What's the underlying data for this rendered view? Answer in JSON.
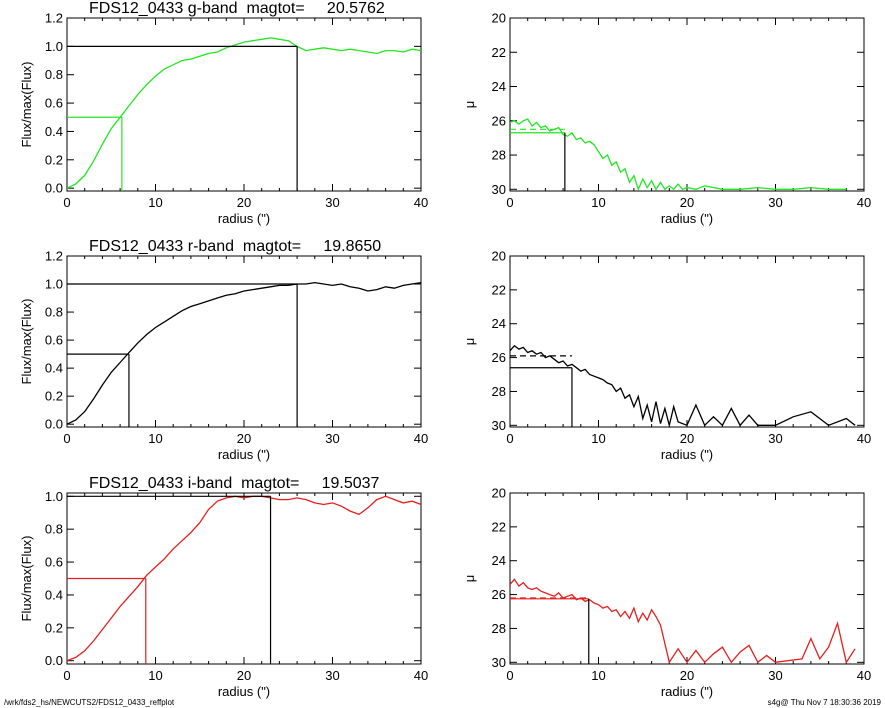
{
  "footer": {
    "path": "/wrk/fds2_hs/NEWCUTS2/FDS12_0433_reffplot",
    "stamp": "s4g@  Thu Nov  7 18:30:36 2019"
  },
  "chart_data": [
    {
      "id": "g-growth",
      "type": "line",
      "band": "g",
      "title": "FDS12_0433 g-band  magtot=     20.5762",
      "xlabel": "radius (\")",
      "ylabel": "Flux/max(Flux)",
      "xlim": [
        0,
        40
      ],
      "ylim": [
        -0.02,
        1.2
      ],
      "xticks": [
        0,
        10,
        20,
        30,
        40
      ],
      "xtick_labels": [
        "0",
        "10",
        "20",
        "30",
        "40"
      ],
      "yticks": [
        0.0,
        0.2,
        0.4,
        0.6,
        0.8,
        1.0,
        1.2
      ],
      "ytick_labels": [
        "0.0",
        "0.2",
        "0.4",
        "0.6",
        "0.8",
        "1.0",
        "1.2"
      ],
      "color": "#22e622",
      "x": [
        0,
        1,
        2,
        3,
        4,
        5,
        6,
        7,
        8,
        9,
        10,
        11,
        12,
        13,
        14,
        15,
        16,
        17,
        18,
        19,
        20,
        21,
        22,
        23,
        24,
        25,
        26,
        27,
        28,
        29,
        30,
        31,
        32,
        33,
        34,
        35,
        36,
        37,
        38,
        39,
        40
      ],
      "y": [
        0.0,
        0.03,
        0.09,
        0.19,
        0.31,
        0.42,
        0.5,
        0.58,
        0.66,
        0.73,
        0.79,
        0.84,
        0.87,
        0.9,
        0.91,
        0.93,
        0.95,
        0.96,
        0.99,
        1.01,
        1.03,
        1.04,
        1.05,
        1.06,
        1.05,
        1.04,
        1.0,
        0.97,
        0.98,
        0.99,
        0.98,
        0.97,
        0.98,
        0.97,
        0.96,
        0.95,
        0.97,
        0.97,
        0.96,
        0.98,
        0.97
      ],
      "markers": [
        {
          "x": 26,
          "y": 1.0,
          "color": "#000000"
        },
        {
          "x": 6.2,
          "y": 0.5,
          "color": "#22e622"
        }
      ]
    },
    {
      "id": "g-profile",
      "type": "line",
      "band": "g",
      "title": "",
      "xlabel": "radius (\")",
      "ylabel": "μ",
      "xlim": [
        0,
        40
      ],
      "ylim": [
        30.1,
        20
      ],
      "xticks": [
        0,
        10,
        20,
        30,
        40
      ],
      "xtick_labels": [
        "0",
        "10",
        "20",
        "30",
        "40"
      ],
      "yticks": [
        20,
        22,
        24,
        26,
        28,
        30
      ],
      "ytick_labels": [
        "20",
        "22",
        "24",
        "26",
        "28",
        "30"
      ],
      "color": "#22e622",
      "x": [
        0,
        0.5,
        1,
        1.5,
        2,
        2.5,
        3,
        3.5,
        4,
        4.5,
        5,
        5.5,
        6,
        6.5,
        7,
        7.5,
        8,
        8.5,
        9,
        9.5,
        10,
        10.5,
        11,
        11.5,
        12,
        12.5,
        13,
        13.5,
        14,
        14.5,
        15,
        15.5,
        16,
        16.5,
        17,
        17.5,
        18,
        18.5,
        19,
        19.5,
        20,
        21,
        22,
        24,
        26,
        28,
        30,
        32,
        34,
        36,
        38
      ],
      "y": [
        26.1,
        26.0,
        26.2,
        26.0,
        25.9,
        26.3,
        26.1,
        26.4,
        26.3,
        26.6,
        26.5,
        26.4,
        26.8,
        26.9,
        26.7,
        27.1,
        27.0,
        27.3,
        27.2,
        27.4,
        27.8,
        28.2,
        28.0,
        28.6,
        28.4,
        29.0,
        28.8,
        29.6,
        29.2,
        30.0,
        29.4,
        29.9,
        29.5,
        30.0,
        29.6,
        30.0,
        29.8,
        30.0,
        29.7,
        30.0,
        29.9,
        30.0,
        29.8,
        30.0,
        30.0,
        29.9,
        30.0,
        30.0,
        29.9,
        30.0,
        30.0
      ],
      "hlines": [
        {
          "y": 26.5,
          "x1": 0,
          "x2": 6.2,
          "color": "#22e622",
          "dash": true
        },
        {
          "y": 26.7,
          "x1": 0,
          "x2": 6.2,
          "color": "#22e622",
          "dash": false
        }
      ],
      "vlines": [
        {
          "x": 6.2,
          "color": "#000000"
        }
      ]
    },
    {
      "id": "r-growth",
      "type": "line",
      "band": "r",
      "title": "FDS12_0433 r-band  magtot=     19.8650",
      "xlabel": "radius (\")",
      "ylabel": "Flux/max(Flux)",
      "xlim": [
        0,
        40
      ],
      "ylim": [
        -0.02,
        1.2
      ],
      "xticks": [
        0,
        10,
        20,
        30,
        40
      ],
      "xtick_labels": [
        "0",
        "10",
        "20",
        "30",
        "40"
      ],
      "yticks": [
        0.0,
        0.2,
        0.4,
        0.6,
        0.8,
        1.0,
        1.2
      ],
      "ytick_labels": [
        "0.0",
        "0.2",
        "0.4",
        "0.6",
        "0.8",
        "1.0",
        "1.2"
      ],
      "color": "#000000",
      "x": [
        0,
        1,
        2,
        3,
        4,
        5,
        6,
        7,
        8,
        9,
        10,
        11,
        12,
        13,
        14,
        15,
        16,
        17,
        18,
        19,
        20,
        21,
        22,
        23,
        24,
        25,
        26,
        27,
        28,
        29,
        30,
        31,
        32,
        33,
        34,
        35,
        36,
        37,
        38,
        39,
        40
      ],
      "y": [
        0.0,
        0.03,
        0.09,
        0.18,
        0.28,
        0.37,
        0.44,
        0.51,
        0.58,
        0.64,
        0.69,
        0.73,
        0.77,
        0.81,
        0.84,
        0.86,
        0.88,
        0.9,
        0.92,
        0.93,
        0.95,
        0.96,
        0.97,
        0.98,
        0.99,
        0.99,
        1.0,
        1.0,
        1.01,
        1.0,
        0.99,
        1.0,
        0.98,
        0.97,
        0.95,
        0.96,
        0.98,
        0.97,
        0.99,
        1.0,
        1.01
      ],
      "markers": [
        {
          "x": 26,
          "y": 1.0,
          "color": "#000000"
        },
        {
          "x": 7,
          "y": 0.5,
          "color": "#000000"
        }
      ]
    },
    {
      "id": "r-profile",
      "type": "line",
      "band": "r",
      "title": "",
      "xlabel": "radius (\")",
      "ylabel": "μ",
      "xlim": [
        0,
        40
      ],
      "ylim": [
        30.1,
        20
      ],
      "xticks": [
        0,
        10,
        20,
        30,
        40
      ],
      "xtick_labels": [
        "0",
        "10",
        "20",
        "30",
        "40"
      ],
      "yticks": [
        20,
        22,
        24,
        26,
        28,
        30
      ],
      "ytick_labels": [
        "20",
        "22",
        "24",
        "26",
        "28",
        "30"
      ],
      "color": "#000000",
      "x": [
        0,
        0.5,
        1,
        1.5,
        2,
        2.5,
        3,
        3.5,
        4,
        4.5,
        5,
        5.5,
        6,
        6.5,
        7,
        7.5,
        8,
        8.5,
        9,
        9.5,
        10,
        10.5,
        11,
        11.5,
        12,
        12.5,
        13,
        13.5,
        14,
        14.5,
        15,
        15.5,
        16,
        16.5,
        17,
        17.5,
        18,
        18.5,
        19,
        20,
        21,
        22,
        23,
        24,
        25,
        26,
        27,
        28,
        30,
        32,
        34,
        36,
        38,
        39
      ],
      "y": [
        25.6,
        25.3,
        25.5,
        25.4,
        25.7,
        25.6,
        25.8,
        25.7,
        26.0,
        25.9,
        26.1,
        26.3,
        26.2,
        26.5,
        26.4,
        26.6,
        26.8,
        26.7,
        27.0,
        27.1,
        27.2,
        27.3,
        27.5,
        27.6,
        28.0,
        27.8,
        28.4,
        28.2,
        28.9,
        28.3,
        29.6,
        28.8,
        29.8,
        28.6,
        29.9,
        29.0,
        30.0,
        28.9,
        29.8,
        30.0,
        28.8,
        30.0,
        29.5,
        30.0,
        29.0,
        30.0,
        29.4,
        30.0,
        30.0,
        29.5,
        29.2,
        30.0,
        29.6,
        30.0
      ],
      "hlines": [
        {
          "y": 25.9,
          "x1": 0,
          "x2": 7,
          "color": "#000000",
          "dash": true
        },
        {
          "y": 26.6,
          "x1": 0,
          "x2": 7,
          "color": "#000000",
          "dash": false
        }
      ],
      "vlines": [
        {
          "x": 7,
          "color": "#000000"
        }
      ]
    },
    {
      "id": "i-growth",
      "type": "line",
      "band": "i",
      "title": "FDS12_0433 i-band  magtot=     19.5037",
      "xlabel": "radius (\")",
      "ylabel": "Flux/max(Flux)",
      "xlim": [
        0,
        40
      ],
      "ylim": [
        -0.02,
        1.02
      ],
      "xticks": [
        0,
        10,
        20,
        30,
        40
      ],
      "xtick_labels": [
        "0",
        "10",
        "20",
        "30",
        "40"
      ],
      "yticks": [
        0.0,
        0.2,
        0.4,
        0.6,
        0.8,
        1.0
      ],
      "ytick_labels": [
        "0.0",
        "0.2",
        "0.4",
        "0.6",
        "0.8",
        "1.0"
      ],
      "color": "#e61e1e",
      "x": [
        0,
        1,
        2,
        3,
        4,
        5,
        6,
        7,
        8,
        9,
        10,
        11,
        12,
        13,
        14,
        15,
        16,
        17,
        18,
        19,
        20,
        21,
        22,
        23,
        24,
        25,
        26,
        27,
        28,
        29,
        30,
        31,
        32,
        33,
        34,
        35,
        36,
        37,
        38,
        39,
        40
      ],
      "y": [
        0.0,
        0.02,
        0.06,
        0.12,
        0.19,
        0.26,
        0.33,
        0.39,
        0.45,
        0.52,
        0.57,
        0.62,
        0.68,
        0.73,
        0.78,
        0.84,
        0.92,
        0.97,
        0.99,
        1.0,
        0.99,
        1.0,
        1.0,
        0.99,
        0.98,
        0.98,
        0.99,
        0.98,
        0.96,
        0.95,
        0.96,
        0.94,
        0.91,
        0.89,
        0.93,
        0.98,
        1.0,
        0.98,
        0.96,
        0.97,
        0.95
      ],
      "markers": [
        {
          "x": 23,
          "y": 1.0,
          "color": "#000000"
        },
        {
          "x": 8.9,
          "y": 0.5,
          "color": "#e61e1e"
        }
      ]
    },
    {
      "id": "i-profile",
      "type": "line",
      "band": "i",
      "title": "",
      "xlabel": "radius (\")",
      "ylabel": "μ",
      "xlim": [
        0,
        40
      ],
      "ylim": [
        30.1,
        20
      ],
      "xticks": [
        0,
        10,
        20,
        30,
        40
      ],
      "xtick_labels": [
        "0",
        "10",
        "20",
        "30",
        "40"
      ],
      "yticks": [
        20,
        22,
        24,
        26,
        28,
        30
      ],
      "ytick_labels": [
        "20",
        "22",
        "24",
        "26",
        "28",
        "30"
      ],
      "color": "#e61e1e",
      "x": [
        0,
        0.5,
        1,
        1.5,
        2,
        2.5,
        3,
        3.5,
        4,
        4.5,
        5,
        5.5,
        6,
        6.5,
        7,
        7.5,
        8,
        8.5,
        9,
        9.5,
        10,
        10.5,
        11,
        11.5,
        12,
        12.5,
        13,
        13.5,
        14,
        14.5,
        15,
        15.5,
        16,
        16.5,
        17,
        18,
        19,
        20,
        21,
        22,
        23,
        24,
        25,
        26,
        27,
        28,
        29,
        30,
        33,
        34,
        35,
        36,
        37,
        38,
        39
      ],
      "y": [
        25.4,
        25.1,
        25.5,
        25.3,
        25.6,
        25.7,
        25.6,
        25.8,
        25.9,
        26.0,
        26.1,
        25.9,
        26.2,
        26.1,
        26.0,
        26.3,
        26.2,
        26.4,
        26.3,
        26.5,
        26.6,
        26.8,
        26.7,
        27.0,
        26.9,
        27.3,
        27.0,
        27.4,
        26.8,
        27.6,
        27.1,
        27.5,
        26.9,
        27.3,
        27.8,
        30.0,
        29.2,
        30.0,
        29.3,
        30.0,
        29.5,
        29.1,
        30.0,
        29.4,
        29.0,
        30.0,
        29.6,
        30.0,
        29.8,
        28.6,
        29.8,
        29.1,
        27.7,
        30.0,
        29.2
      ],
      "hlines": [
        {
          "y": 26.2,
          "x1": 0,
          "x2": 8.9,
          "color": "#e61e1e",
          "dash": true
        },
        {
          "y": 26.25,
          "x1": 0,
          "x2": 8.9,
          "color": "#e61e1e",
          "dash": false
        }
      ],
      "vlines": [
        {
          "x": 8.9,
          "color": "#000000"
        }
      ]
    }
  ]
}
